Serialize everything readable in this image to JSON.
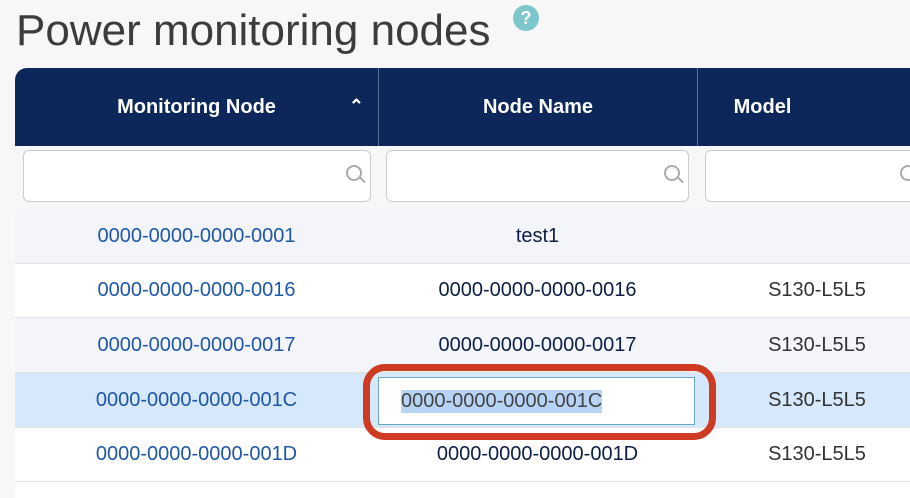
{
  "page": {
    "title": "Power monitoring nodes",
    "help_icon": "question-circle-icon"
  },
  "columns": [
    {
      "label": "Monitoring Node",
      "sorted": "ascending"
    },
    {
      "label": "Node Name"
    },
    {
      "label": "Model"
    }
  ],
  "rows": [
    {
      "node": "0000-0000-0000-0001",
      "name": "test1",
      "model": ""
    },
    {
      "node": "0000-0000-0000-0016",
      "name": "0000-0000-0000-0016",
      "model": "S130-L5L5"
    },
    {
      "node": "0000-0000-0000-0017",
      "name": "0000-0000-0000-0017",
      "model": "S130-L5L5"
    },
    {
      "node": "0000-0000-0000-001C",
      "name": "0000-0000-0000-001C",
      "model": "S130-L5L5",
      "editing": true,
      "selected": true
    },
    {
      "node": "0000-0000-0000-001D",
      "name": "0000-0000-0000-001D",
      "model": "S130-L5L5"
    }
  ],
  "colors": {
    "header": "#0d275b",
    "link": "#1f57a8",
    "highlight": "#cf3a22",
    "selected_row": "#d6e8fb"
  }
}
